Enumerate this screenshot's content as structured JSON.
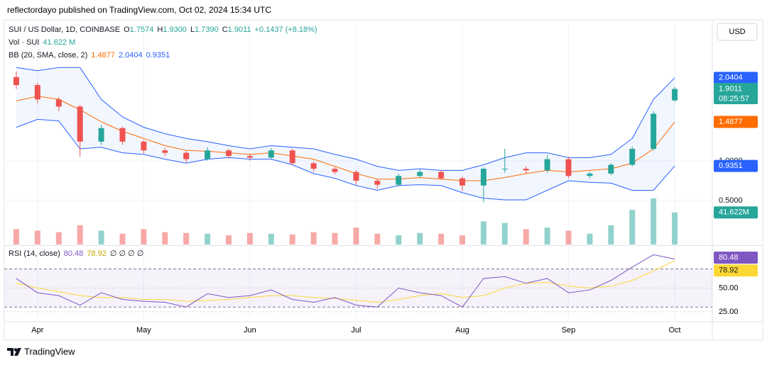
{
  "header": {
    "published": "reflectordayo published on TradingView.com, Oct 02, 2024 15:34 UTC",
    "currency": "USD",
    "countdown": "08:25:57"
  },
  "footer": {
    "brand": "TradingView"
  },
  "chart_data": [
    {
      "type": "candlestick",
      "title": "SUI / US Dollar, 1D, COINBASE",
      "ohlc_fields": [
        {
          "key": "O",
          "text": "1.7574"
        },
        {
          "key": "H",
          "text": "1.9300"
        },
        {
          "key": "L",
          "text": "1.7390"
        },
        {
          "key": "C",
          "text": "1.9011"
        }
      ],
      "change": "+0.1437 (+8.18%)",
      "categories": [
        null,
        "Apr",
        null,
        null,
        null,
        null,
        "May",
        null,
        null,
        null,
        null,
        "Jun",
        null,
        null,
        null,
        null,
        "Jul",
        null,
        null,
        null,
        null,
        "Aug",
        null,
        null,
        null,
        null,
        "Sep",
        null,
        null,
        null,
        null,
        "Oct"
      ],
      "open": [
        2.05,
        1.95,
        1.77,
        1.68,
        1.24,
        1.41,
        1.24,
        1.13,
        1.1,
        1.02,
        1.13,
        1.06,
        1.04,
        1.13,
        0.97,
        0.9,
        0.86,
        0.75,
        0.7,
        0.81,
        0.86,
        0.78,
        0.69,
        0.9,
        0.9,
        0.88,
        1.02,
        0.81,
        0.84,
        0.95,
        1.15,
        1.7574
      ],
      "high": [
        2.12,
        1.98,
        1.8,
        1.7,
        1.45,
        1.43,
        1.26,
        1.16,
        1.12,
        1.17,
        1.15,
        1.09,
        1.16,
        1.15,
        0.99,
        0.92,
        0.88,
        0.77,
        0.84,
        0.89,
        0.88,
        0.8,
        0.92,
        1.15,
        0.93,
        1.07,
        1.05,
        0.86,
        0.97,
        1.18,
        1.62,
        1.93
      ],
      "low": [
        1.9,
        1.72,
        1.62,
        1.05,
        1.2,
        1.2,
        1.09,
        1.06,
        0.97,
        1.0,
        1.03,
        1.0,
        1.02,
        0.95,
        0.86,
        0.83,
        0.7,
        0.65,
        0.68,
        0.79,
        0.76,
        0.62,
        0.48,
        0.85,
        0.84,
        0.85,
        0.78,
        0.78,
        0.82,
        0.93,
        1.13,
        1.739
      ],
      "close": [
        1.95,
        1.77,
        1.68,
        1.24,
        1.41,
        1.24,
        1.13,
        1.1,
        1.02,
        1.13,
        1.06,
        1.04,
        1.13,
        0.97,
        0.9,
        0.86,
        0.75,
        0.7,
        0.81,
        0.86,
        0.78,
        0.69,
        0.9,
        0.9,
        0.88,
        1.02,
        0.81,
        0.84,
        0.95,
        1.15,
        1.59,
        1.9011
      ],
      "up_color": "#26a69a",
      "down_color": "#ef5350",
      "ylim": [
        -0.05,
        2.75
      ],
      "yticks": [
        {
          "value": 0.5,
          "label": "0.5000"
        },
        {
          "value": 1,
          "label": "1.0000"
        }
      ],
      "grid": true,
      "bollinger": {
        "name": "BB (20, SMA, close, 2)",
        "fill": "#2962ff",
        "basis": {
          "color": "#ff6d00",
          "values": [
            1.75,
            1.81,
            1.77,
            1.64,
            1.49,
            1.37,
            1.28,
            1.19,
            1.13,
            1.12,
            1.1,
            1.08,
            1.1,
            1.06,
            1.02,
            0.93,
            0.84,
            0.77,
            0.77,
            0.79,
            0.77,
            0.75,
            0.75,
            0.79,
            0.84,
            0.88,
            0.86,
            0.88,
            0.9,
            0.97,
            1.15,
            1.4877
          ]
        },
        "upper": {
          "color": "#2962ff",
          "values": [
            2.17,
            2.13,
            2.17,
            2.17,
            1.77,
            1.55,
            1.42,
            1.34,
            1.28,
            1.24,
            1.19,
            1.15,
            1.19,
            1.17,
            1.15,
            1.08,
            1.02,
            0.93,
            0.88,
            0.9,
            0.88,
            0.88,
            0.95,
            1.04,
            1.1,
            1.1,
            1.04,
            1.04,
            1.08,
            1.28,
            1.77,
            2.0404
          ]
        },
        "lower": {
          "color": "#2962ff",
          "values": [
            1.42,
            1.52,
            1.5,
            1.15,
            1.17,
            1.1,
            1.08,
            1.02,
            0.97,
            1.02,
            1.04,
            1.02,
            1.02,
            0.95,
            0.84,
            0.78,
            0.69,
            0.63,
            0.69,
            0.7,
            0.69,
            0.6,
            0.53,
            0.51,
            0.51,
            0.63,
            0.75,
            0.73,
            0.72,
            0.63,
            0.63,
            0.9351
          ]
        }
      },
      "volume": {
        "name": "Vol · SUI",
        "legend_label": "41.622 M",
        "axis_label": "41.622M",
        "ylim": [
          0,
          290
        ],
        "values": [
          20,
          18,
          16,
          25,
          18,
          14,
          20,
          16,
          15,
          14,
          12,
          15,
          14,
          13,
          16,
          15,
          22,
          14,
          12,
          15,
          14,
          12,
          30,
          28,
          20,
          22,
          18,
          14,
          25,
          45,
          60,
          41.622
        ]
      }
    },
    {
      "type": "rsi",
      "name": "RSI (14, close)",
      "color": "#7e57c2",
      "extra": "∅ ∅ ∅ ∅",
      "values": [
        60,
        45,
        42,
        32,
        45,
        38,
        36,
        35,
        30,
        44,
        40,
        42,
        48,
        38,
        35,
        40,
        32,
        30,
        50,
        45,
        42,
        30,
        60,
        62,
        55,
        60,
        45,
        48,
        58,
        72,
        85,
        80.48
      ],
      "ma": {
        "color": "#fdd835",
        "values": [
          55,
          50,
          46,
          42,
          40,
          40,
          38,
          38,
          36,
          37,
          38,
          40,
          42,
          42,
          40,
          39,
          37,
          35,
          38,
          42,
          44,
          40,
          42,
          50,
          55,
          56,
          52,
          50,
          52,
          58,
          68,
          78.92
        ]
      },
      "ylim": [
        16,
        93.5
      ],
      "yticks": [
        {
          "value": 25,
          "label": "25.00"
        },
        {
          "value": 50,
          "label": "50.00"
        }
      ],
      "band": [
        30,
        70
      ]
    }
  ]
}
